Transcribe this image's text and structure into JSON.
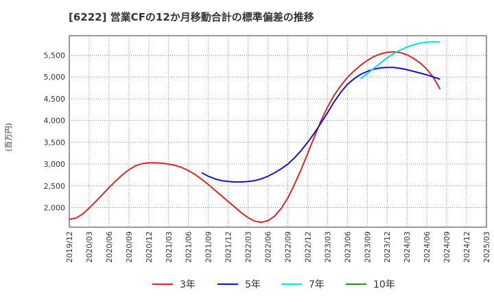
{
  "chart_data": {
    "type": "line",
    "title": "[6222]  営業CFの12か月移動合計の標準偏差の推移",
    "ylabel": "(百万円)",
    "xlabel": "",
    "ylim": [
      1550,
      5950
    ],
    "yticks": [
      2000,
      2500,
      3000,
      3500,
      4000,
      4500,
      5000,
      5500
    ],
    "ytick_labels": [
      "2,000",
      "2,500",
      "3,000",
      "3,500",
      "4,000",
      "4,500",
      "5,000",
      "5,500"
    ],
    "xticks": [
      "2019/12",
      "2020/03",
      "2020/06",
      "2020/09",
      "2020/12",
      "2021/03",
      "2021/06",
      "2021/09",
      "2021/12",
      "2022/03",
      "2022/06",
      "2022/09",
      "2022/12",
      "2023/03",
      "2023/06",
      "2023/09",
      "2023/12",
      "2024/03",
      "2024/06",
      "2024/09",
      "2024/12",
      "2025/03"
    ],
    "grid": true,
    "legend_position": "bottom",
    "series": [
      {
        "name": "3年",
        "color": "#dd2222",
        "points": [
          [
            "2019/12",
            1730
          ],
          [
            "2020/01",
            1760
          ],
          [
            "2020/02",
            1850
          ],
          [
            "2020/03",
            1990
          ],
          [
            "2020/04",
            2140
          ],
          [
            "2020/05",
            2300
          ],
          [
            "2020/06",
            2460
          ],
          [
            "2020/07",
            2610
          ],
          [
            "2020/08",
            2750
          ],
          [
            "2020/09",
            2870
          ],
          [
            "2020/10",
            2960
          ],
          [
            "2020/11",
            3010
          ],
          [
            "2020/12",
            3030
          ],
          [
            "2021/01",
            3030
          ],
          [
            "2021/02",
            3020
          ],
          [
            "2021/03",
            3000
          ],
          [
            "2021/04",
            2970
          ],
          [
            "2021/05",
            2920
          ],
          [
            "2021/06",
            2850
          ],
          [
            "2021/07",
            2760
          ],
          [
            "2021/08",
            2650
          ],
          [
            "2021/09",
            2530
          ],
          [
            "2021/10",
            2400
          ],
          [
            "2021/11",
            2270
          ],
          [
            "2021/12",
            2140
          ],
          [
            "2022/01",
            2010
          ],
          [
            "2022/02",
            1880
          ],
          [
            "2022/03",
            1770
          ],
          [
            "2022/04",
            1690
          ],
          [
            "2022/05",
            1660
          ],
          [
            "2022/06",
            1700
          ],
          [
            "2022/07",
            1800
          ],
          [
            "2022/08",
            1980
          ],
          [
            "2022/09",
            2220
          ],
          [
            "2022/10",
            2530
          ],
          [
            "2022/11",
            2870
          ],
          [
            "2022/12",
            3240
          ],
          [
            "2023/01",
            3620
          ],
          [
            "2023/02",
            3990
          ],
          [
            "2023/03",
            4310
          ],
          [
            "2023/04",
            4580
          ],
          [
            "2023/05",
            4800
          ],
          [
            "2023/06",
            4990
          ],
          [
            "2023/07",
            5140
          ],
          [
            "2023/08",
            5270
          ],
          [
            "2023/09",
            5380
          ],
          [
            "2023/10",
            5470
          ],
          [
            "2023/11",
            5530
          ],
          [
            "2023/12",
            5570
          ],
          [
            "2024/01",
            5580
          ],
          [
            "2024/02",
            5560
          ],
          [
            "2024/03",
            5510
          ],
          [
            "2024/04",
            5430
          ],
          [
            "2024/05",
            5320
          ],
          [
            "2024/06",
            5180
          ],
          [
            "2024/07",
            4990
          ],
          [
            "2024/08",
            4720
          ]
        ]
      },
      {
        "name": "5年",
        "color": "#1111cc",
        "points": [
          [
            "2021/08",
            2800
          ],
          [
            "2021/09",
            2720
          ],
          [
            "2021/10",
            2660
          ],
          [
            "2021/11",
            2620
          ],
          [
            "2021/12",
            2600
          ],
          [
            "2022/01",
            2590
          ],
          [
            "2022/02",
            2590
          ],
          [
            "2022/03",
            2600
          ],
          [
            "2022/04",
            2620
          ],
          [
            "2022/05",
            2660
          ],
          [
            "2022/06",
            2720
          ],
          [
            "2022/07",
            2800
          ],
          [
            "2022/08",
            2890
          ],
          [
            "2022/09",
            3000
          ],
          [
            "2022/10",
            3140
          ],
          [
            "2022/11",
            3310
          ],
          [
            "2022/12",
            3500
          ],
          [
            "2023/01",
            3710
          ],
          [
            "2023/02",
            3940
          ],
          [
            "2023/03",
            4180
          ],
          [
            "2023/04",
            4430
          ],
          [
            "2023/05",
            4650
          ],
          [
            "2023/06",
            4830
          ],
          [
            "2023/07",
            4960
          ],
          [
            "2023/08",
            5060
          ],
          [
            "2023/09",
            5130
          ],
          [
            "2023/10",
            5180
          ],
          [
            "2023/11",
            5210
          ],
          [
            "2023/12",
            5220
          ],
          [
            "2024/01",
            5220
          ],
          [
            "2024/02",
            5200
          ],
          [
            "2024/03",
            5170
          ],
          [
            "2024/04",
            5130
          ],
          [
            "2024/05",
            5090
          ],
          [
            "2024/06",
            5050
          ],
          [
            "2024/07",
            5000
          ],
          [
            "2024/08",
            4950
          ]
        ]
      },
      {
        "name": "7年",
        "color": "#00dddd",
        "points": [
          [
            "2023/08",
            4960
          ],
          [
            "2023/09",
            5080
          ],
          [
            "2023/10",
            5200
          ],
          [
            "2023/11",
            5320
          ],
          [
            "2023/12",
            5440
          ],
          [
            "2024/01",
            5540
          ],
          [
            "2024/02",
            5620
          ],
          [
            "2024/03",
            5690
          ],
          [
            "2024/04",
            5740
          ],
          [
            "2024/05",
            5780
          ],
          [
            "2024/06",
            5800
          ],
          [
            "2024/07",
            5810
          ],
          [
            "2024/08",
            5800
          ]
        ]
      },
      {
        "name": "10年",
        "color": "#228822",
        "points": []
      }
    ]
  }
}
